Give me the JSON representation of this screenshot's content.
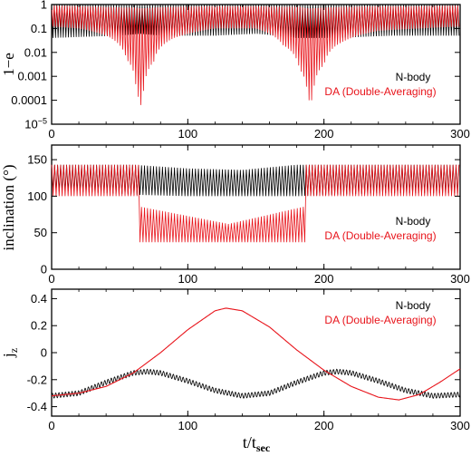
{
  "colors": {
    "nbody": "#000000",
    "da": "#e8141b"
  },
  "xlabel": {
    "base": "t/t",
    "sub": "sec"
  },
  "chart_data": [
    {
      "type": "line",
      "id": "p1",
      "ylabel": "1−e",
      "yscale": "log",
      "xlim": [
        0,
        300
      ],
      "ylim": [
        1e-05,
        1
      ],
      "xticks": [
        "0",
        "100",
        "200",
        "300"
      ],
      "yticks": [
        {
          "v": 1,
          "label": "1"
        },
        {
          "v": 0.1,
          "label": "0.1"
        },
        {
          "v": 0.01,
          "label": "0.01"
        },
        {
          "v": 0.001,
          "label": "0.001"
        },
        {
          "v": 0.0001,
          "label": "0.0001"
        },
        {
          "v": 1e-05,
          "label": "10",
          "sup": "−5"
        }
      ],
      "legend": {
        "position": "right",
        "entries": [
          "N-body",
          "DA (Double-Averaging)"
        ]
      },
      "series": [
        {
          "name": "N-body",
          "period": 1.9,
          "envelope": {
            "x": [
              0,
              50,
              65,
              80,
              120,
              150,
              180,
              195,
              210,
              250,
              300
            ],
            "min": [
              0.04,
              0.05,
              0.06,
              0.05,
              0.05,
              0.06,
              0.04,
              0.04,
              0.04,
              0.05,
              0.05
            ],
            "max": [
              1,
              1,
              1,
              1,
              1,
              1,
              1,
              1,
              1,
              1,
              1
            ]
          }
        },
        {
          "name": "DA (Double-Averaging)",
          "period": 1.9,
          "envelope": {
            "x": [
              0,
              20,
              40,
              55,
              62,
              65,
              68,
              75,
              90,
              120,
              150,
              170,
              182,
              188,
              192,
              200,
              215,
              240,
              270,
              300
            ],
            "min": [
              0.12,
              0.1,
              0.05,
              0.005,
              0.0003,
              1e-05,
              0.0003,
              0.004,
              0.04,
              0.1,
              0.1,
              0.02,
              0.002,
              0.0001,
              0.0001,
              0.003,
              0.03,
              0.08,
              0.1,
              0.12
            ],
            "max": [
              0.9,
              0.85,
              0.8,
              0.75,
              0.75,
              0.7,
              0.7,
              0.75,
              0.8,
              0.85,
              0.85,
              0.8,
              0.8,
              0.7,
              0.7,
              0.75,
              0.8,
              0.85,
              0.85,
              0.9
            ]
          }
        }
      ]
    },
    {
      "type": "line",
      "id": "p2",
      "ylabel": "inclination (°)",
      "yscale": "linear",
      "xlim": [
        0,
        300
      ],
      "ylim": [
        0,
        170
      ],
      "xticks": [
        "0",
        "100",
        "200",
        "300"
      ],
      "yticks": [
        {
          "v": 0,
          "label": "0"
        },
        {
          "v": 50,
          "label": "50"
        },
        {
          "v": 100,
          "label": "100"
        },
        {
          "v": 150,
          "label": "150"
        }
      ],
      "legend": {
        "position": "right",
        "entries": [
          "N-body",
          "DA (Double-Averaging)"
        ]
      },
      "series": [
        {
          "name": "N-body",
          "period": 2.2,
          "envelope": {
            "x": [
              0,
              60,
              100,
              140,
              180,
              240,
              300
            ],
            "min": [
              108,
              102,
              100,
              100,
              100,
              104,
              104
            ],
            "max": [
              143,
              143,
              138,
              136,
              143,
              143,
              143
            ]
          }
        },
        {
          "name": "DA (Double-Averaging)",
          "period": 2.2,
          "envelope": {
            "x": [
              0,
              64,
              64.01,
              130,
              186,
              186.01,
              300
            ],
            "min": [
              100,
              100,
              37,
              37,
              37,
              100,
              100
            ],
            "max": [
              143,
              143,
              86,
              62,
              86,
              143,
              143
            ]
          }
        }
      ]
    },
    {
      "type": "line",
      "id": "p3",
      "ylabel": "j",
      "ylabel_sub": "z",
      "yscale": "linear",
      "xlim": [
        0,
        300
      ],
      "ylim": [
        -0.47,
        0.47
      ],
      "xticks": [
        "0",
        "100",
        "200",
        "300"
      ],
      "yticks": [
        {
          "v": 0.4,
          "label": "0.4"
        },
        {
          "v": 0.2,
          "label": "0.2"
        },
        {
          "v": 0,
          "label": "0"
        },
        {
          "v": -0.2,
          "label": "-0.2"
        },
        {
          "v": -0.4,
          "label": "-0.4"
        }
      ],
      "legend": {
        "position": "right",
        "entries": [
          "N-body",
          "DA (Double-Averaging)"
        ]
      },
      "series": [
        {
          "name": "N-body",
          "period": 2.4,
          "amp": 0.018,
          "x": [
            0,
            20,
            40,
            60,
            70,
            80,
            100,
            120,
            140,
            160,
            180,
            200,
            210,
            220,
            240,
            260,
            280,
            300
          ],
          "y": [
            -0.32,
            -0.3,
            -0.22,
            -0.15,
            -0.14,
            -0.15,
            -0.21,
            -0.28,
            -0.32,
            -0.3,
            -0.22,
            -0.15,
            -0.14,
            -0.15,
            -0.21,
            -0.28,
            -0.32,
            -0.31
          ]
        },
        {
          "name": "DA (Double-Averaging)",
          "period": 0,
          "x": [
            0,
            20,
            40,
            60,
            80,
            100,
            120,
            128,
            140,
            160,
            180,
            200,
            220,
            240,
            255,
            270,
            285,
            300
          ],
          "y": [
            -0.32,
            -0.3,
            -0.25,
            -0.15,
            0.0,
            0.17,
            0.31,
            0.33,
            0.31,
            0.19,
            0.02,
            -0.13,
            -0.25,
            -0.33,
            -0.35,
            -0.31,
            -0.22,
            -0.12
          ]
        }
      ]
    }
  ]
}
